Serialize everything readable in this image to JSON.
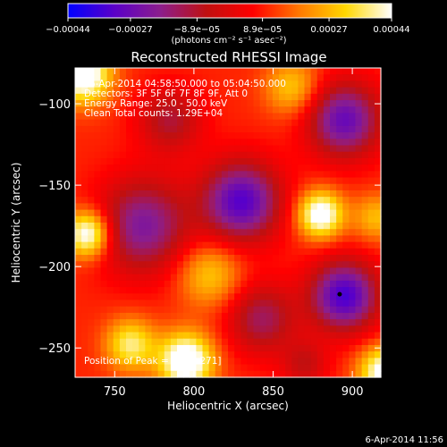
{
  "chart_data": {
    "type": "heatmap",
    "title": "Reconstructed RHESSI Image",
    "xlabel": "Heliocentric X (arcsec)",
    "ylabel": "Heliocentric Y (arcsec)",
    "xlim": [
      725,
      918
    ],
    "ylim": [
      -268,
      -78
    ],
    "xticks": [
      750,
      800,
      850,
      900
    ],
    "yticks": [
      -100,
      -150,
      -200,
      -250
    ],
    "x_tick_labels": [
      "750",
      "800",
      "850",
      "900"
    ],
    "y_tick_labels": [
      "−100",
      "−150",
      "−200",
      "−250"
    ],
    "colorbar": {
      "min": -0.00044,
      "max": 0.00044,
      "ticks": [
        -0.00044,
        -0.00027,
        -8.9e-05,
        8.9e-05,
        0.00027,
        0.00044
      ],
      "tick_labels": [
        "−0.00044",
        "−0.00027",
        "−8.9e−05",
        "8.9e−05",
        "0.00027",
        "0.00044"
      ],
      "unit_label": "(photons cm⁻² s⁻¹ asec⁻²)",
      "colormap": [
        "#0000ff",
        "#5a00c8",
        "#8c1e8c",
        "#c01010",
        "#ff0000",
        "#ff7800",
        "#ffd700",
        "#ffffff"
      ]
    },
    "annotations": [
      "6-Apr-2014 04:58:50.000 to 05:04:50.000",
      "Detectors: 3F 5F 6F 7F 8F 9F, Att 0",
      "Energy Range: 25.0 - 50.0 keV",
      "Clean    Total counts: 1.29E+04"
    ],
    "peak_label": "Position of Peak = [798,-271]",
    "marker": {
      "x": 892,
      "y": -217
    },
    "grid_resolution": [
      48,
      48
    ],
    "sources": [
      {
        "x": 768,
        "y": -175,
        "value": -0.00032,
        "sigma": 20
      },
      {
        "x": 830,
        "y": -160,
        "value": -0.00042,
        "sigma": 17
      },
      {
        "x": 895,
        "y": -218,
        "value": -0.00044,
        "sigma": 15
      },
      {
        "x": 895,
        "y": -110,
        "value": -0.00038,
        "sigma": 16
      },
      {
        "x": 785,
        "y": -110,
        "value": -0.0002,
        "sigma": 14
      },
      {
        "x": 843,
        "y": -232,
        "value": -0.00024,
        "sigma": 15
      },
      {
        "x": 870,
        "y": -260,
        "value": -0.00015,
        "sigma": 10
      },
      {
        "x": 730,
        "y": -82,
        "value": 0.00044,
        "sigma": 12
      },
      {
        "x": 733,
        "y": -180,
        "value": 0.0004,
        "sigma": 10
      },
      {
        "x": 880,
        "y": -168,
        "value": 0.0004,
        "sigma": 10
      },
      {
        "x": 795,
        "y": -258,
        "value": 0.00044,
        "sigma": 12
      },
      {
        "x": 920,
        "y": -265,
        "value": 0.00038,
        "sigma": 11
      },
      {
        "x": 810,
        "y": -205,
        "value": 0.0002,
        "sigma": 14
      },
      {
        "x": 862,
        "y": -90,
        "value": 0.0002,
        "sigma": 12
      },
      {
        "x": 915,
        "y": -170,
        "value": 0.00018,
        "sigma": 10
      },
      {
        "x": 760,
        "y": -248,
        "value": 0.00028,
        "sigma": 11
      }
    ],
    "base_value": 0.0001
  },
  "footer": {
    "timestamp": "6-Apr-2014 11:56"
  }
}
